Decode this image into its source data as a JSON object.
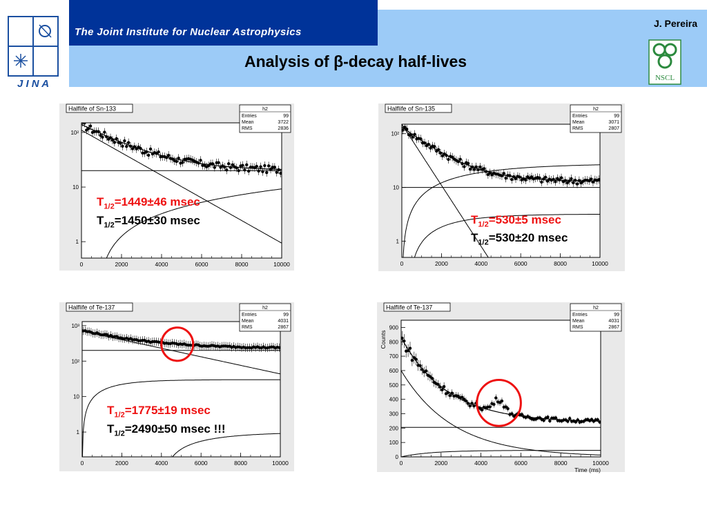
{
  "header": {
    "institute": "The Joint Institute for Nuclear Astrophysics",
    "logo_text": "J I N A",
    "author": "J. Pereira",
    "title": "Analysis of β-decay half-lives",
    "nscl_logo_text": "NSCL",
    "colors": {
      "banner": "#003399",
      "band": "#9ccbf7",
      "accent_red": "#ee1111"
    }
  },
  "chart_data": [
    {
      "type": "scatter",
      "title": "Halflife of Sn-133",
      "stats": {
        "name": "h2",
        "rows": [
          [
            "Entries",
            "99"
          ],
          [
            "Mean",
            "3722"
          ],
          [
            "RMS",
            "2836"
          ]
        ]
      },
      "xlabel": "",
      "ylabel": "",
      "xlim": [
        0,
        10000
      ],
      "ylim": [
        0.5,
        150
      ],
      "yscale": "log",
      "xticks": [
        "0",
        "2000",
        "4000",
        "6000",
        "8000",
        "10000"
      ],
      "yticks": [
        {
          "v": 100,
          "label": "10²"
        },
        {
          "v": 10,
          "label": "10"
        },
        {
          "v": 1,
          "label": "1"
        }
      ],
      "fit": {
        "comp1": {
          "A": 110,
          "tau": 2100
        },
        "comp2": {
          "A": 20
        },
        "comp3": {
          "A": 0,
          "B": 1.0,
          "k": 3000,
          "t0": 750
        }
      },
      "points": {
        "amplitude": 120,
        "tau": 2100,
        "base": 20,
        "noise": 0.15,
        "every": 100
      },
      "annotations": [
        {
          "color": "red",
          "label": "T",
          "sub": "1/2",
          "rest": "=1449±46 msec"
        },
        {
          "color": "black",
          "label": "T",
          "sub": "1/2",
          "rest": "=1450±30 msec"
        }
      ]
    },
    {
      "type": "scatter",
      "title": "Halflife of Sn-135",
      "stats": {
        "name": "h2",
        "rows": [
          [
            "Entries",
            "99"
          ],
          [
            "Mean",
            "3071"
          ],
          [
            "RMS",
            "2807"
          ]
        ]
      },
      "xlabel": "",
      "ylabel": "",
      "xlim": [
        0,
        10000
      ],
      "ylim": [
        0.5,
        150
      ],
      "yscale": "log",
      "xticks": [
        "0",
        "2000",
        "4000",
        "6000",
        "8000",
        "10000"
      ],
      "yticks": [
        {
          "v": 100,
          "label": "10²"
        },
        {
          "v": 10,
          "label": "10"
        },
        {
          "v": 1,
          "label": "1"
        }
      ],
      "fit": {
        "comp1": {
          "A": 150,
          "tau": 765
        },
        "comp2": {
          "A": 10
        },
        "comp3": {
          "A": 28,
          "B": 0,
          "k": 3500,
          "t0": 0
        },
        "comp4": {
          "A": 3.2,
          "B": 0,
          "k": 2000,
          "t0": 300
        }
      },
      "points": {
        "amplitude": 120,
        "tau": 1500,
        "base": 13,
        "noise": 0.13,
        "every": 100
      },
      "annotations": [
        {
          "color": "red",
          "label": "T",
          "sub": "1/2",
          "rest": "=530±5 msec"
        },
        {
          "color": "black",
          "label": "T",
          "sub": "1/2",
          "rest": "=530±20 msec"
        }
      ]
    },
    {
      "type": "scatter",
      "title": "Halflife of Te-137",
      "stats": {
        "name": "h2",
        "rows": [
          [
            "Entries",
            "99"
          ],
          [
            "Mean",
            "4031"
          ],
          [
            "RMS",
            "2867"
          ]
        ]
      },
      "xlabel": "",
      "ylabel": "",
      "xlim": [
        0,
        10000
      ],
      "ylim": [
        0.2,
        1300
      ],
      "yscale": "log",
      "xticks": [
        "0",
        "2000",
        "4000",
        "6000",
        "8000",
        "10000"
      ],
      "yticks": [
        {
          "v": 1000,
          "label": "10³"
        },
        {
          "v": 100,
          "label": "10²"
        },
        {
          "v": 10,
          "label": "10"
        },
        {
          "v": 1,
          "label": "1"
        }
      ],
      "fit": {
        "comp1": {
          "A": 700,
          "tau": 3600
        },
        "comp2": {
          "A": 200
        },
        "comp3": {
          "A": 30,
          "B": 0,
          "k": 1500,
          "t0": 0
        },
        "comp4": {
          "A": 1.0,
          "B": 0,
          "k": 2500,
          "t0": 4000
        }
      },
      "points": {
        "amplitude": 500,
        "tau": 2500,
        "base": 230,
        "noise": 0.05,
        "every": 100
      },
      "annotations": [
        {
          "color": "red",
          "label": "T",
          "sub": "1/2",
          "rest": "=1775±19 msec"
        },
        {
          "color": "black",
          "label": "T",
          "sub": "1/2",
          "rest": "=2490±50 msec !!!"
        }
      ],
      "highlight": {
        "x": 4800,
        "y": 300,
        "rx": 800
      }
    },
    {
      "type": "scatter",
      "title": "Halflife of Te-137",
      "stats": {
        "name": "h2",
        "rows": [
          [
            "Entries",
            "99"
          ],
          [
            "Mean",
            "4031"
          ],
          [
            "RMS",
            "2867"
          ]
        ]
      },
      "xlabel": "Time (ms)",
      "ylabel": "Counts",
      "xlim": [
        0,
        10000
      ],
      "ylim": [
        0,
        950
      ],
      "yscale": "linear",
      "xticks": [
        "0",
        "2000",
        "4000",
        "6000",
        "8000",
        "10000"
      ],
      "yticks": [
        {
          "v": 900,
          "label": "900"
        },
        {
          "v": 800,
          "label": "800"
        },
        {
          "v": 700,
          "label": "700"
        },
        {
          "v": 600,
          "label": "600"
        },
        {
          "v": 500,
          "label": "500"
        },
        {
          "v": 400,
          "label": "400"
        },
        {
          "v": 300,
          "label": "300"
        },
        {
          "v": 200,
          "label": "200"
        },
        {
          "v": 100,
          "label": "100"
        },
        {
          "v": 0,
          "label": "0"
        }
      ],
      "fit": {
        "comp1": {
          "A": 600,
          "tau": 2600
        },
        "comp2": {
          "A": 205
        },
        "comp3": {
          "A": 45,
          "B": 0,
          "k": 1500,
          "t0": 0
        }
      },
      "points": {
        "amplitude": 590,
        "tau": 2300,
        "base": 240,
        "noise": 0.05,
        "every": 100,
        "bump": {
          "x": 4900,
          "h": 90,
          "w": 400
        }
      },
      "highlight": {
        "x": 4900,
        "y": 375,
        "rx": 1100
      }
    }
  ]
}
